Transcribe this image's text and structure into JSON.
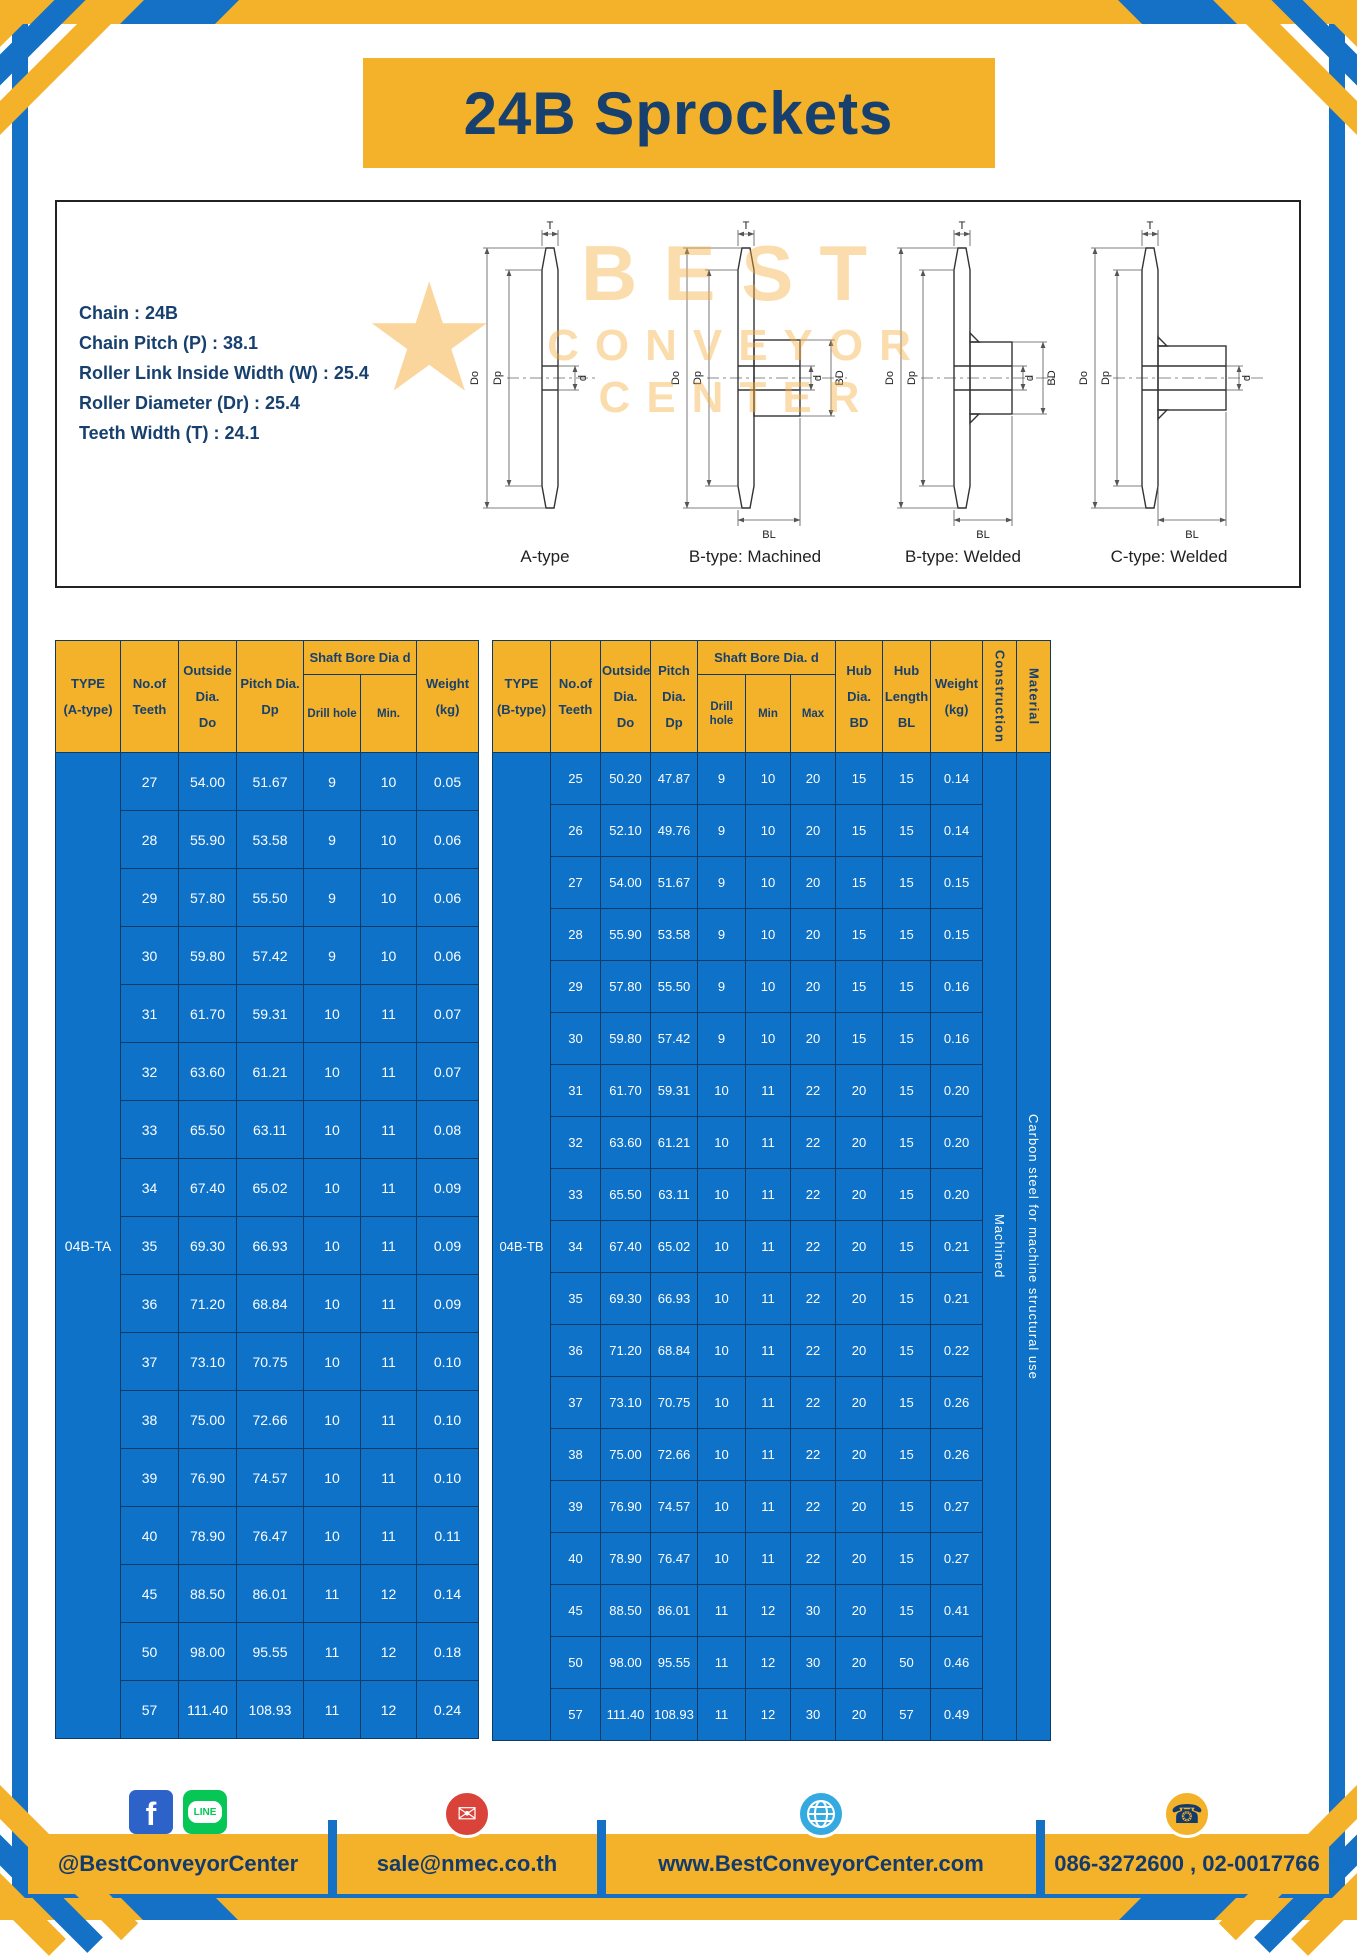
{
  "page": {
    "title": "24B Sprockets"
  },
  "specs": [
    "Chain  :  24B",
    "Chain Pitch (P)  :  38.1",
    "Roller Link Inside Width (W)  :  25.4",
    "Roller Diameter (Dr)  :  25.4",
    "Teeth Width (T)  :  24.1"
  ],
  "diagram": {
    "labels": [
      "A-type",
      "B-type: Machined",
      "B-type: Welded",
      "C-type: Welded"
    ],
    "dims": {
      "t": "T",
      "do": "Do",
      "dp": "Dp",
      "d": "d",
      "bd": "BD",
      "bl": "BL"
    },
    "watermark": {
      "line1": "BEST",
      "line2": "CONVEYOR",
      "line3": "CENTER",
      "star": "★"
    }
  },
  "table_a": {
    "headers": {
      "type": "TYPE\n(A-type)",
      "teeth": "No.of\nTeeth",
      "outside": "Outside\nDia.\nDo",
      "pitch": "Pitch Dia.\nDp",
      "bore_group": "Shaft Bore Dia d",
      "drill": "Drill hole",
      "min": "Min.",
      "weight": "Weight\n(kg)"
    },
    "span_cells_pre": [
      {
        "text": "04B-TA",
        "cls": "type-cell",
        "name": "type-a-value"
      }
    ],
    "rows": [
      [
        "27",
        "54.00",
        "51.67",
        "9",
        "10",
        "0.05"
      ],
      [
        "28",
        "55.90",
        "53.58",
        "9",
        "10",
        "0.06"
      ],
      [
        "29",
        "57.80",
        "55.50",
        "9",
        "10",
        "0.06"
      ],
      [
        "30",
        "59.80",
        "57.42",
        "9",
        "10",
        "0.06"
      ],
      [
        "31",
        "61.70",
        "59.31",
        "10",
        "11",
        "0.07"
      ],
      [
        "32",
        "63.60",
        "61.21",
        "10",
        "11",
        "0.07"
      ],
      [
        "33",
        "65.50",
        "63.11",
        "10",
        "11",
        "0.08"
      ],
      [
        "34",
        "67.40",
        "65.02",
        "10",
        "11",
        "0.09"
      ],
      [
        "35",
        "69.30",
        "66.93",
        "10",
        "11",
        "0.09"
      ],
      [
        "36",
        "71.20",
        "68.84",
        "10",
        "11",
        "0.09"
      ],
      [
        "37",
        "73.10",
        "70.75",
        "10",
        "11",
        "0.10"
      ],
      [
        "38",
        "75.00",
        "72.66",
        "10",
        "11",
        "0.10"
      ],
      [
        "39",
        "76.90",
        "74.57",
        "10",
        "11",
        "0.10"
      ],
      [
        "40",
        "78.90",
        "76.47",
        "10",
        "11",
        "0.11"
      ],
      [
        "45",
        "88.50",
        "86.01",
        "11",
        "12",
        "0.14"
      ],
      [
        "50",
        "98.00",
        "95.55",
        "11",
        "12",
        "0.18"
      ],
      [
        "57",
        "111.40",
        "108.93",
        "11",
        "12",
        "0.24"
      ]
    ]
  },
  "table_b": {
    "headers": {
      "type": "TYPE\n(B-type)",
      "teeth": "No.of\nTeeth",
      "outside": "Outside\nDia.\nDo",
      "pitch": "Pitch\nDia.\nDp",
      "bore_group": "Shaft Bore Dia.  d",
      "drill": "Drill hole",
      "min": "Min",
      "max": "Max",
      "hub_dia": "Hub\nDia.\nBD",
      "hub_len": "Hub\nLength\nBL",
      "weight": "Weight\n(kg)",
      "construction": "Construction",
      "material": "Material"
    },
    "span_cells_pre": [
      {
        "text": "04B-TB",
        "cls": "type-cell",
        "name": "type-b-value"
      }
    ],
    "span_cells_post": [
      {
        "text": "Machined",
        "cls": "vert-cell",
        "name": "construction-value"
      },
      {
        "text": "Carbon steel for machine structural use",
        "cls": "vert-cell",
        "name": "material-value"
      }
    ],
    "rows": [
      [
        "25",
        "50.20",
        "47.87",
        "9",
        "10",
        "20",
        "15",
        "15",
        "0.14"
      ],
      [
        "26",
        "52.10",
        "49.76",
        "9",
        "10",
        "20",
        "15",
        "15",
        "0.14"
      ],
      [
        "27",
        "54.00",
        "51.67",
        "9",
        "10",
        "20",
        "15",
        "15",
        "0.15"
      ],
      [
        "28",
        "55.90",
        "53.58",
        "9",
        "10",
        "20",
        "15",
        "15",
        "0.15"
      ],
      [
        "29",
        "57.80",
        "55.50",
        "9",
        "10",
        "20",
        "15",
        "15",
        "0.16"
      ],
      [
        "30",
        "59.80",
        "57.42",
        "9",
        "10",
        "20",
        "15",
        "15",
        "0.16"
      ],
      [
        "31",
        "61.70",
        "59.31",
        "10",
        "11",
        "22",
        "20",
        "15",
        "0.20"
      ],
      [
        "32",
        "63.60",
        "61.21",
        "10",
        "11",
        "22",
        "20",
        "15",
        "0.20"
      ],
      [
        "33",
        "65.50",
        "63.11",
        "10",
        "11",
        "22",
        "20",
        "15",
        "0.20"
      ],
      [
        "34",
        "67.40",
        "65.02",
        "10",
        "11",
        "22",
        "20",
        "15",
        "0.21"
      ],
      [
        "35",
        "69.30",
        "66.93",
        "10",
        "11",
        "22",
        "20",
        "15",
        "0.21"
      ],
      [
        "36",
        "71.20",
        "68.84",
        "10",
        "11",
        "22",
        "20",
        "15",
        "0.22"
      ],
      [
        "37",
        "73.10",
        "70.75",
        "10",
        "11",
        "22",
        "20",
        "15",
        "0.26"
      ],
      [
        "38",
        "75.00",
        "72.66",
        "10",
        "11",
        "22",
        "20",
        "15",
        "0.26"
      ],
      [
        "39",
        "76.90",
        "74.57",
        "10",
        "11",
        "22",
        "20",
        "15",
        "0.27"
      ],
      [
        "40",
        "78.90",
        "76.47",
        "10",
        "11",
        "22",
        "20",
        "15",
        "0.27"
      ],
      [
        "45",
        "88.50",
        "86.01",
        "11",
        "12",
        "30",
        "20",
        "15",
        "0.41"
      ],
      [
        "50",
        "98.00",
        "95.55",
        "11",
        "12",
        "30",
        "20",
        "50",
        "0.46"
      ],
      [
        "57",
        "111.40",
        "108.93",
        "11",
        "12",
        "30",
        "20",
        "57",
        "0.49"
      ]
    ]
  },
  "footer": {
    "facebook": "f",
    "line": "LINE",
    "social_handle": "@BestConveyorCenter",
    "email": "sale@nmec.co.th",
    "website": "www.BestConveyorCenter.com",
    "phone": "086-3272600 , 02-0017766",
    "mail_glyph": "✉",
    "phone_glyph": "☎"
  },
  "colors": {
    "yellow": "#F3B229",
    "table_blue": "#0E72C8",
    "frame_blue": "#1471C6",
    "navy": "#17406F"
  }
}
